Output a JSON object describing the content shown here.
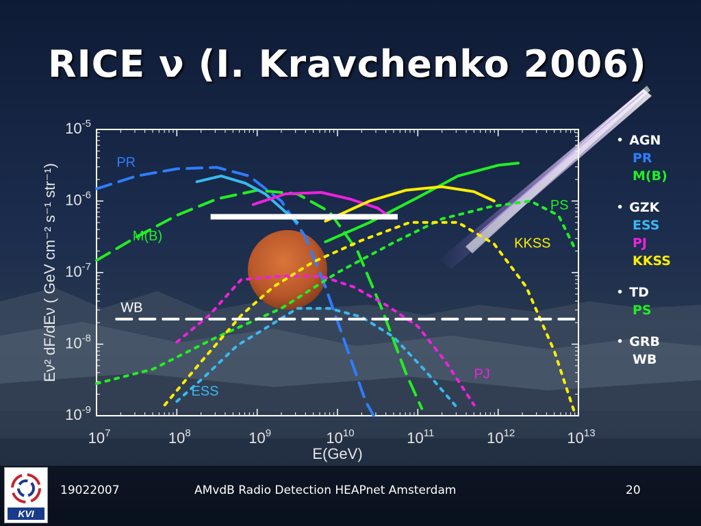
{
  "slide": {
    "title": "RICE ν (I. Kravchenko 2006)"
  },
  "legend": [
    {
      "group": "AGN",
      "items": [
        {
          "label": "PR",
          "color": "#2f7dff"
        },
        {
          "label": "M(B)",
          "color": "#22ee22"
        }
      ]
    },
    {
      "group": "GZK",
      "items": [
        {
          "label": "ESS",
          "color": "#3ab8f0"
        },
        {
          "label": "PJ",
          "color": "#ee22dd"
        },
        {
          "label": "KKSS",
          "color": "#ffee00"
        }
      ]
    },
    {
      "group": "TD",
      "items": [
        {
          "label": "PS",
          "color": "#22ee22"
        }
      ]
    },
    {
      "group": "GRB",
      "items": [
        {
          "label": "WB",
          "color": "#ffffff"
        }
      ]
    }
  ],
  "footer": {
    "date": "19022007",
    "caption": "AMvdB Radio Detection HEAPnet Amsterdam",
    "page": "20"
  },
  "logo": {
    "text": "KVI"
  },
  "chart_data": {
    "type": "line",
    "xlabel": "E(GeV)",
    "ylabel": "Eν² dF/dEν ( GeV cm⁻² s⁻¹ str⁻¹)",
    "x_scale": "log",
    "y_scale": "log",
    "xlim_exp": [
      7,
      13
    ],
    "ylim_exp": [
      -9,
      -5
    ],
    "x_tick_labels": [
      "10",
      "10",
      "10",
      "10",
      "10",
      "10",
      "10"
    ],
    "x_tick_exps": [
      "7",
      "8",
      "9",
      "10",
      "11",
      "12",
      "13"
    ],
    "y_tick_labels": [
      "10",
      "10",
      "10",
      "10",
      "10"
    ],
    "y_tick_exps": [
      "-5",
      "-6",
      "-7",
      "-8",
      "-9"
    ],
    "limit_bar": {
      "x_exp": [
        8.42,
        10.75
      ],
      "y_exp": -6.22
    },
    "series": [
      {
        "name": "PR",
        "label": "PR",
        "color": "#2f7dff",
        "dash": "long",
        "points": [
          [
            7.0,
            -5.83
          ],
          [
            7.5,
            -5.65
          ],
          [
            8.0,
            -5.55
          ],
          [
            8.5,
            -5.53
          ],
          [
            8.9,
            -5.65
          ],
          [
            9.3,
            -6.0
          ],
          [
            9.6,
            -6.5
          ],
          [
            9.85,
            -7.2
          ],
          [
            10.1,
            -8.0
          ],
          [
            10.35,
            -8.8
          ],
          [
            10.45,
            -9.05
          ]
        ]
      },
      {
        "name": "M(B)",
        "label": "M(B)",
        "color": "#22ee22",
        "dash": "long",
        "points": [
          [
            7.0,
            -6.83
          ],
          [
            7.5,
            -6.5
          ],
          [
            8.0,
            -6.2
          ],
          [
            8.5,
            -5.97
          ],
          [
            9.0,
            -5.85
          ],
          [
            9.5,
            -5.9
          ],
          [
            9.9,
            -6.15
          ],
          [
            10.25,
            -6.7
          ],
          [
            10.55,
            -7.5
          ],
          [
            10.85,
            -8.4
          ],
          [
            11.05,
            -8.9
          ]
        ]
      },
      {
        "name": "PS",
        "label": "PS",
        "color": "#22ee22",
        "dash": "dot",
        "points": [
          [
            7.0,
            -8.55
          ],
          [
            7.7,
            -8.35
          ],
          [
            8.5,
            -7.9
          ],
          [
            9.3,
            -7.5
          ],
          [
            10.0,
            -7.0
          ],
          [
            10.7,
            -6.58
          ],
          [
            11.3,
            -6.25
          ],
          [
            11.9,
            -6.08
          ],
          [
            12.4,
            -6.0
          ],
          [
            12.75,
            -6.2
          ],
          [
            12.95,
            -6.65
          ]
        ]
      },
      {
        "name": "PS-upper",
        "label": "",
        "color": "#22ee22",
        "dash": "solid",
        "points": [
          [
            9.85,
            -6.57
          ],
          [
            10.4,
            -6.3
          ],
          [
            11.0,
            -5.95
          ],
          [
            11.5,
            -5.65
          ],
          [
            12.0,
            -5.5
          ],
          [
            12.25,
            -5.47
          ]
        ]
      },
      {
        "name": "ESS",
        "label": "ESS",
        "color": "#3ab8f0",
        "dash": "dot",
        "points": [
          [
            8.0,
            -8.8
          ],
          [
            8.35,
            -8.45
          ],
          [
            8.75,
            -8.02
          ],
          [
            9.1,
            -7.78
          ],
          [
            9.5,
            -7.5
          ],
          [
            9.9,
            -7.5
          ],
          [
            10.3,
            -7.62
          ],
          [
            10.7,
            -7.9
          ],
          [
            11.1,
            -8.38
          ],
          [
            11.5,
            -8.9
          ]
        ]
      },
      {
        "name": "ESS-upper",
        "label": "",
        "color": "#3ab8f0",
        "dash": "solid",
        "points": [
          [
            8.25,
            -5.73
          ],
          [
            8.55,
            -5.65
          ],
          [
            8.85,
            -5.75
          ],
          [
            9.1,
            -5.9
          ],
          [
            9.3,
            -6.1
          ],
          [
            9.5,
            -6.3
          ]
        ]
      },
      {
        "name": "PJ",
        "label": "PJ",
        "color": "#ee22dd",
        "dash": "dot",
        "points": [
          [
            8.0,
            -7.97
          ],
          [
            8.4,
            -7.6
          ],
          [
            8.8,
            -7.1
          ],
          [
            9.3,
            -7.05
          ],
          [
            9.8,
            -7.05
          ],
          [
            10.2,
            -7.2
          ],
          [
            10.6,
            -7.45
          ],
          [
            11.0,
            -7.75
          ],
          [
            11.35,
            -8.25
          ],
          [
            11.7,
            -8.85
          ]
        ]
      },
      {
        "name": "PJ-upper",
        "label": "",
        "color": "#ee22dd",
        "dash": "solid",
        "points": [
          [
            8.95,
            -6.05
          ],
          [
            9.35,
            -5.9
          ],
          [
            9.8,
            -5.88
          ],
          [
            10.15,
            -5.97
          ],
          [
            10.5,
            -6.1
          ],
          [
            10.65,
            -6.22
          ]
        ]
      },
      {
        "name": "KKSS",
        "label": "KKSS",
        "color": "#ffee00",
        "dash": "dot",
        "points": [
          [
            7.85,
            -8.85
          ],
          [
            8.3,
            -8.25
          ],
          [
            8.8,
            -7.6
          ],
          [
            9.2,
            -7.2
          ],
          [
            9.7,
            -6.85
          ],
          [
            10.3,
            -6.55
          ],
          [
            10.9,
            -6.3
          ],
          [
            11.5,
            -6.3
          ],
          [
            11.95,
            -6.6
          ],
          [
            12.35,
            -7.2
          ],
          [
            12.7,
            -8.1
          ],
          [
            12.95,
            -8.95
          ]
        ]
      },
      {
        "name": "KKSS-upper",
        "label": "",
        "color": "#ffee00",
        "dash": "solid",
        "points": [
          [
            9.85,
            -6.28
          ],
          [
            10.4,
            -6.0
          ],
          [
            10.85,
            -5.85
          ],
          [
            11.3,
            -5.8
          ],
          [
            11.7,
            -5.87
          ],
          [
            11.95,
            -6.0
          ]
        ]
      },
      {
        "name": "WB",
        "label": "WB",
        "color": "#ffffff",
        "dash": "long",
        "points": [
          [
            7.25,
            -7.65
          ],
          [
            12.95,
            -7.65
          ]
        ]
      }
    ],
    "curve_labels": [
      {
        "text": "PR",
        "color": "#2f7dff",
        "x_exp": 7.25,
        "y_exp": -5.52
      },
      {
        "text": "M(B)",
        "color": "#22ee22",
        "x_exp": 7.45,
        "y_exp": -6.55
      },
      {
        "text": "PS",
        "color": "#22ee22",
        "x_exp": 12.65,
        "y_exp": -6.12
      },
      {
        "text": "KKSS",
        "color": "#ffee00",
        "x_exp": 12.2,
        "y_exp": -6.65
      },
      {
        "text": "WB",
        "color": "#ffffff",
        "x_exp": 7.3,
        "y_exp": -7.55
      },
      {
        "text": "PJ",
        "color": "#ee22dd",
        "x_exp": 11.7,
        "y_exp": -8.48
      },
      {
        "text": "ESS",
        "color": "#3ab8f0",
        "x_exp": 8.18,
        "y_exp": -8.72
      }
    ]
  }
}
